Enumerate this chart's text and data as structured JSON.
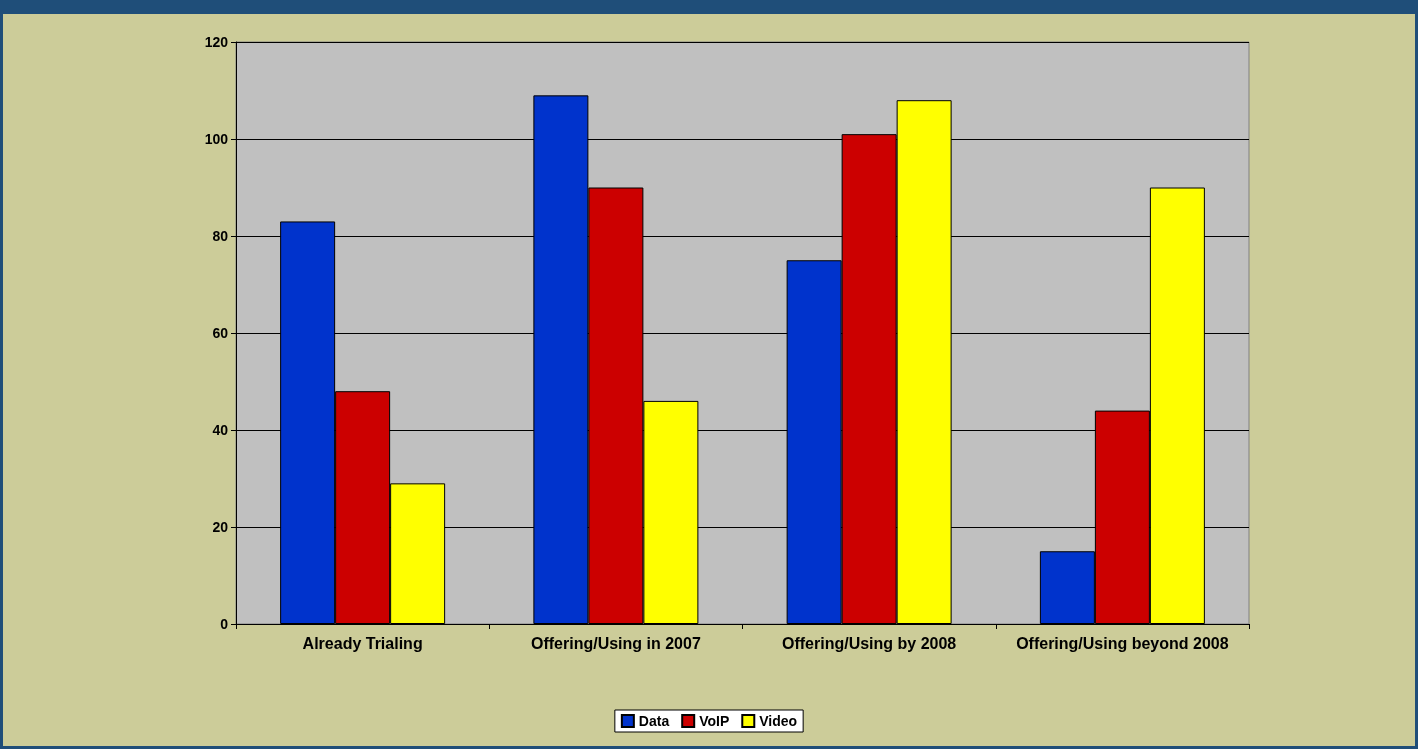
{
  "chart_data": {
    "type": "bar",
    "categories": [
      "Already Trialing",
      "Offering/Using in 2007",
      "Offering/Using by 2008",
      "Offering/Using beyond 2008"
    ],
    "series": [
      {
        "name": "Data",
        "color": "#0033cc",
        "values": [
          83,
          109,
          75,
          15
        ]
      },
      {
        "name": "VoIP",
        "color": "#cc0000",
        "values": [
          48,
          90,
          101,
          44
        ]
      },
      {
        "name": "Video",
        "color": "#ffff00",
        "values": [
          29,
          46,
          108,
          90
        ]
      }
    ],
    "ylim": [
      0,
      120
    ],
    "yticks": [
      0,
      20,
      40,
      60,
      80,
      100,
      120
    ],
    "grid": "y",
    "legend": "bottom"
  }
}
